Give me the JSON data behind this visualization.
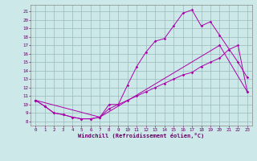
{
  "xlabel": "Windchill (Refroidissement éolien,°C)",
  "background_color": "#cce8e8",
  "line_color": "#aa00aa",
  "grid_color": "#aacccc",
  "xlim": [
    -0.5,
    23.5
  ],
  "ylim": [
    7.5,
    21.8
  ],
  "xticks": [
    0,
    1,
    2,
    3,
    4,
    5,
    6,
    7,
    8,
    9,
    10,
    11,
    12,
    13,
    14,
    15,
    16,
    17,
    18,
    19,
    20,
    21,
    22,
    23
  ],
  "yticks": [
    8,
    9,
    10,
    11,
    12,
    13,
    14,
    15,
    16,
    17,
    18,
    19,
    20,
    21
  ],
  "line1_x": [
    0,
    1,
    2,
    3,
    4,
    5,
    6,
    7,
    8,
    9,
    10,
    11,
    12,
    13,
    14,
    15,
    16,
    17,
    18,
    19,
    20,
    22,
    23
  ],
  "line1_y": [
    10.5,
    9.8,
    9.0,
    8.8,
    8.5,
    8.3,
    8.3,
    8.5,
    10.0,
    10.0,
    12.3,
    14.5,
    16.2,
    17.5,
    17.8,
    19.3,
    20.8,
    21.2,
    19.3,
    19.8,
    18.2,
    15.0,
    13.2
  ],
  "line2_x": [
    0,
    1,
    2,
    3,
    4,
    5,
    6,
    7,
    8,
    9,
    10,
    11,
    12,
    13,
    14,
    15,
    16,
    17,
    18,
    19,
    20,
    21,
    22,
    23
  ],
  "line2_y": [
    10.5,
    9.8,
    9.0,
    8.8,
    8.5,
    8.3,
    8.3,
    8.5,
    9.5,
    10.0,
    10.5,
    11.0,
    11.5,
    12.0,
    12.5,
    13.0,
    13.5,
    13.8,
    14.5,
    15.0,
    15.5,
    16.5,
    17.0,
    11.5
  ],
  "line3_x": [
    0,
    7,
    20,
    23
  ],
  "line3_y": [
    10.5,
    8.5,
    17.0,
    11.5
  ]
}
